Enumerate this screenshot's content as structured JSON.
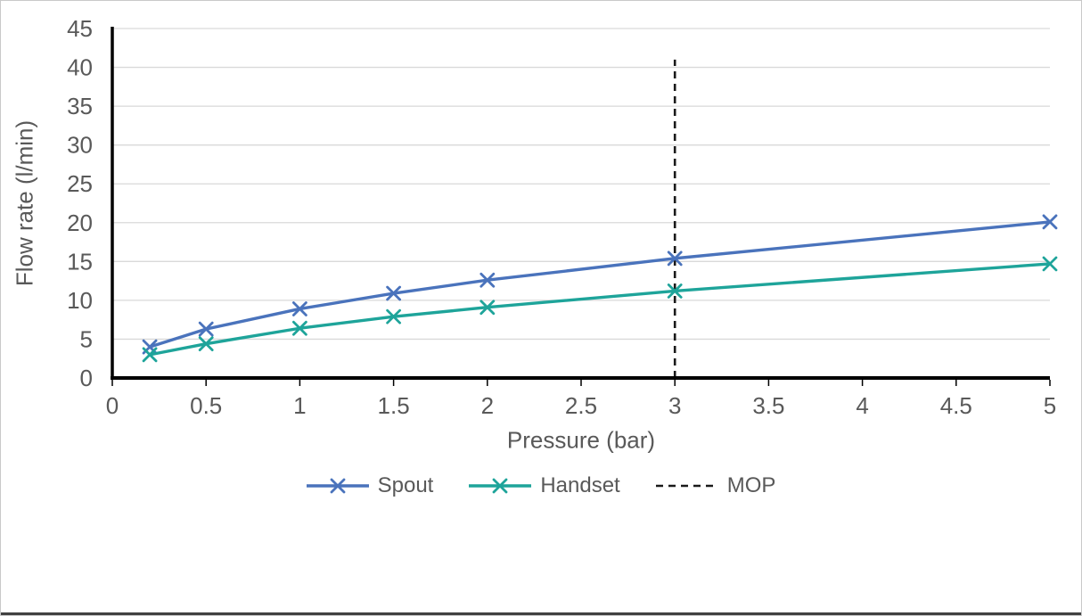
{
  "chart_data": {
    "type": "scatter",
    "title": "",
    "xlabel": "Pressure (bar)",
    "ylabel": "Flow rate (l/min)",
    "xlim": [
      0,
      5
    ],
    "ylim": [
      0,
      45
    ],
    "xticks": [
      0,
      0.5,
      1,
      1.5,
      2,
      2.5,
      3,
      3.5,
      4,
      4.5,
      5
    ],
    "yticks": [
      0,
      5,
      10,
      15,
      20,
      25,
      30,
      35,
      40,
      45
    ],
    "grid": "horizontal",
    "legend_position": "bottom",
    "series": [
      {
        "name": "Spout",
        "color": "#4A73BC",
        "marker": "x",
        "x": [
          0.2,
          0.5,
          1,
          1.5,
          2,
          3,
          5
        ],
        "y": [
          4.0,
          6.3,
          8.9,
          10.9,
          12.6,
          15.4,
          20.1
        ]
      },
      {
        "name": "Handset",
        "color": "#1EA49A",
        "marker": "x",
        "x": [
          0.2,
          0.5,
          1,
          1.5,
          2,
          3,
          5
        ],
        "y": [
          3.0,
          4.4,
          6.4,
          7.9,
          9.1,
          11.2,
          14.7
        ]
      }
    ],
    "reference_lines": [
      {
        "name": "MOP",
        "axis": "x",
        "value": 3,
        "y_span": [
          0,
          41
        ],
        "style": "dashed",
        "color": "#1A1A1A"
      }
    ]
  },
  "styles": {
    "tick_label_color": "#595959",
    "grid_color": "#D9D9D9",
    "axis_color": "#000000",
    "frame_border_color": "#C9C9C9",
    "bottom_edge_color": "#404040"
  }
}
